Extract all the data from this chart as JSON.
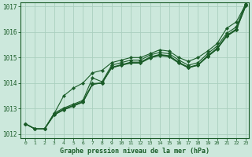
{
  "title": "Graphe pression niveau de la mer (hPa)",
  "background_color": "#cce8dc",
  "grid_color": "#aacfbf",
  "line_color": "#1a5c28",
  "xlim_min": -0.5,
  "xlim_max": 23.3,
  "ylim_min": 1011.85,
  "ylim_max": 1017.15,
  "yticks": [
    1012,
    1013,
    1014,
    1015,
    1016,
    1017
  ],
  "xticks": [
    0,
    1,
    2,
    3,
    4,
    5,
    6,
    7,
    8,
    9,
    10,
    11,
    12,
    13,
    14,
    15,
    16,
    17,
    18,
    19,
    20,
    21,
    22,
    23
  ],
  "series": [
    [
      1012.4,
      1012.2,
      1012.2,
      1012.75,
      1012.95,
      1013.1,
      1013.25,
      1013.95,
      1014.0,
      1014.6,
      1014.7,
      1014.8,
      1014.8,
      1015.0,
      1015.1,
      1015.05,
      1014.8,
      1014.6,
      1014.7,
      1015.05,
      1015.35,
      1015.85,
      1016.1,
      1017.05
    ],
    [
      1012.4,
      1012.2,
      1012.2,
      1012.78,
      1012.98,
      1013.13,
      1013.28,
      1013.98,
      1014.0,
      1014.62,
      1014.72,
      1014.82,
      1014.82,
      1015.02,
      1015.12,
      1015.07,
      1014.82,
      1014.62,
      1014.72,
      1015.07,
      1015.37,
      1015.87,
      1016.12,
      1017.07
    ],
    [
      1012.4,
      1012.2,
      1012.2,
      1012.82,
      1013.02,
      1013.17,
      1013.32,
      1014.2,
      1014.05,
      1014.7,
      1014.8,
      1014.9,
      1014.9,
      1015.1,
      1015.2,
      1015.15,
      1014.9,
      1014.7,
      1014.8,
      1015.15,
      1015.45,
      1015.95,
      1016.2,
      1017.15
    ],
    [
      1012.4,
      1012.2,
      1012.2,
      1012.75,
      1012.95,
      1013.1,
      1013.25,
      1013.95,
      1014.0,
      1014.6,
      1014.7,
      1014.78,
      1014.78,
      1014.98,
      1015.08,
      1015.03,
      1014.78,
      1014.6,
      1014.7,
      1015.03,
      1015.33,
      1015.83,
      1016.08,
      1017.03
    ],
    [
      1012.4,
      1012.2,
      1012.2,
      1012.8,
      1013.5,
      1013.8,
      1014.0,
      1014.4,
      1014.5,
      1014.8,
      1014.9,
      1015.0,
      1015.0,
      1015.15,
      1015.3,
      1015.25,
      1015.0,
      1014.85,
      1015.0,
      1015.25,
      1015.55,
      1016.15,
      1016.4,
      1017.1
    ]
  ]
}
